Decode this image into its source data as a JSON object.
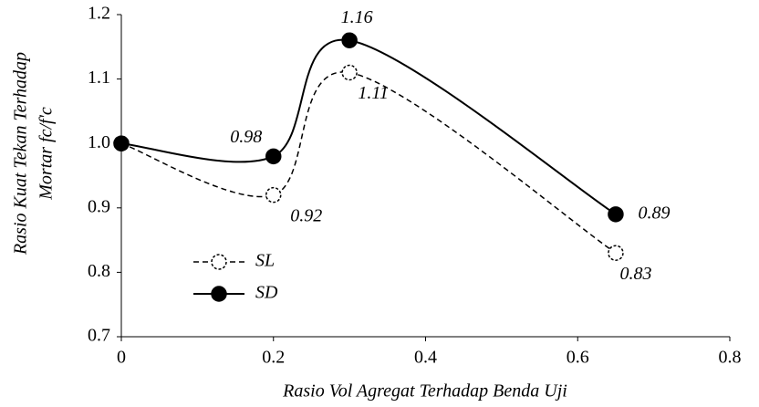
{
  "chart_data": {
    "type": "line",
    "x_label": "Rasio Vol Agregat Terhadap Benda Uji",
    "y_label": [
      "Rasio Kuat Tekan Terhadap",
      "Mortar fc/f'c"
    ],
    "x": [
      0,
      0.2,
      0.3,
      0.65
    ],
    "series": [
      {
        "name": "SL",
        "color": "#000000",
        "dashed": true,
        "marker": "open-circle",
        "values": [
          1.0,
          0.92,
          1.11,
          0.83
        ],
        "value_labels": [
          null,
          "0.92",
          "1.11",
          "0.83"
        ]
      },
      {
        "name": "SD",
        "color": "#000000",
        "dashed": false,
        "marker": "filled-circle",
        "values": [
          1.0,
          0.98,
          1.16,
          0.89
        ],
        "value_labels": [
          null,
          "0.98",
          "1.16",
          "0.89"
        ]
      }
    ],
    "xlim": [
      0,
      0.8
    ],
    "xticks": [
      0,
      0.2,
      0.4,
      0.6,
      0.8
    ],
    "ylim": [
      0.7,
      1.2
    ],
    "yticks": [
      0.7,
      0.8,
      0.9,
      {
        "value": 1.0,
        "label": "1.0"
      },
      1.1,
      1.2
    ],
    "grid": false,
    "legend": "lower left"
  }
}
